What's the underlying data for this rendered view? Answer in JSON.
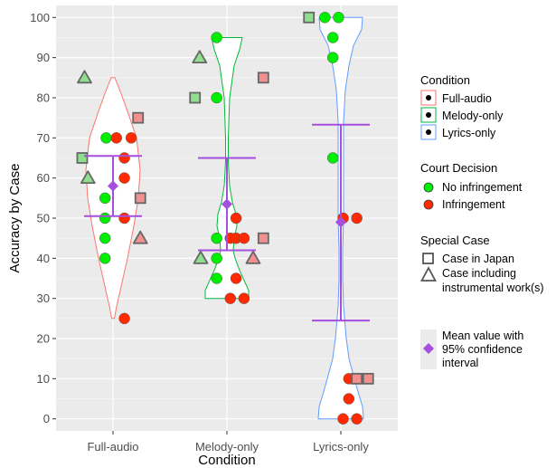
{
  "chart_data": {
    "type": "scatter",
    "title": "",
    "xlabel": "Condition",
    "ylabel": "Accuracy by Case",
    "ylim": [
      -3,
      103
    ],
    "yticks": [
      0,
      10,
      20,
      30,
      40,
      50,
      60,
      70,
      80,
      90,
      100
    ],
    "categories": [
      "Full-audio",
      "Melody-only",
      "Lyrics-only"
    ],
    "grid": true,
    "background": "#ebebeb",
    "legend_position": "right",
    "colors": {
      "no_infringement": "#00ee00",
      "infringement": "#ff2a00",
      "no_infringement_special": "#8fdf8f",
      "infringement_special": "#f29090",
      "mean": "#a64fdf",
      "violin_full": "#f8766d",
      "violin_melody": "#00ba38",
      "violin_lyrics": "#619cff"
    },
    "violins": [
      {
        "category": "Full-audio",
        "color": "#f8766d",
        "profile": [
          [
            25,
            1.5
          ],
          [
            28,
            4
          ],
          [
            33,
            9
          ],
          [
            40,
            16
          ],
          [
            48,
            23
          ],
          [
            55,
            28
          ],
          [
            62,
            30
          ],
          [
            70,
            26
          ],
          [
            76,
            17
          ],
          [
            81,
            9
          ],
          [
            85,
            2
          ]
        ]
      },
      {
        "category": "Melody-only",
        "color": "#00ba38",
        "profile": [
          [
            30,
            24
          ],
          [
            32,
            24
          ],
          [
            34,
            20
          ],
          [
            37,
            14
          ],
          [
            40,
            9
          ],
          [
            42,
            7
          ],
          [
            45,
            8
          ],
          [
            48,
            11
          ],
          [
            51,
            10
          ],
          [
            54,
            6
          ],
          [
            58,
            3
          ],
          [
            64,
            1.5
          ],
          [
            70,
            1.5
          ],
          [
            80,
            3
          ],
          [
            88,
            8
          ],
          [
            92,
            14
          ],
          [
            95,
            17
          ]
        ]
      },
      {
        "category": "Lyrics-only",
        "color": "#619cff",
        "profile": [
          [
            0,
            25
          ],
          [
            3,
            24
          ],
          [
            6,
            20
          ],
          [
            10,
            15
          ],
          [
            15,
            9
          ],
          [
            20,
            6
          ],
          [
            28,
            3
          ],
          [
            35,
            2
          ],
          [
            42,
            2
          ],
          [
            50,
            3
          ],
          [
            58,
            3
          ],
          [
            66,
            3
          ],
          [
            74,
            3
          ],
          [
            82,
            5
          ],
          [
            88,
            9
          ],
          [
            93,
            14
          ],
          [
            97,
            23
          ],
          [
            100,
            24
          ]
        ]
      }
    ],
    "points": [
      {
        "category": "Full-audio",
        "y": 85,
        "dx": -0.25,
        "decision": "no_infringement",
        "special": "instrumental"
      },
      {
        "category": "Full-audio",
        "y": 75,
        "dx": 0.22,
        "decision": "infringement",
        "special": "japan"
      },
      {
        "category": "Full-audio",
        "y": 70,
        "dx": -0.06,
        "decision": "no_infringement",
        "special": "none"
      },
      {
        "category": "Full-audio",
        "y": 70,
        "dx": 0.03,
        "decision": "infringement",
        "special": "none"
      },
      {
        "category": "Full-audio",
        "y": 70,
        "dx": 0.16,
        "decision": "infringement",
        "special": "none"
      },
      {
        "category": "Full-audio",
        "y": 65,
        "dx": -0.27,
        "decision": "no_infringement",
        "special": "japan"
      },
      {
        "category": "Full-audio",
        "y": 65,
        "dx": 0.1,
        "decision": "infringement",
        "special": "none"
      },
      {
        "category": "Full-audio",
        "y": 60,
        "dx": -0.22,
        "decision": "no_infringement",
        "special": "instrumental"
      },
      {
        "category": "Full-audio",
        "y": 60,
        "dx": 0.1,
        "decision": "infringement",
        "special": "none"
      },
      {
        "category": "Full-audio",
        "y": 55,
        "dx": -0.07,
        "decision": "no_infringement",
        "special": "none"
      },
      {
        "category": "Full-audio",
        "y": 55,
        "dx": 0.24,
        "decision": "infringement",
        "special": "japan"
      },
      {
        "category": "Full-audio",
        "y": 50,
        "dx": -0.07,
        "decision": "no_infringement",
        "special": "none"
      },
      {
        "category": "Full-audio",
        "y": 50,
        "dx": 0.1,
        "decision": "infringement",
        "special": "none"
      },
      {
        "category": "Full-audio",
        "y": 45,
        "dx": -0.07,
        "decision": "no_infringement",
        "special": "none"
      },
      {
        "category": "Full-audio",
        "y": 45,
        "dx": 0.24,
        "decision": "infringement",
        "special": "instrumental"
      },
      {
        "category": "Full-audio",
        "y": 40,
        "dx": -0.07,
        "decision": "no_infringement",
        "special": "none"
      },
      {
        "category": "Full-audio",
        "y": 25,
        "dx": 0.1,
        "decision": "infringement",
        "special": "none"
      },
      {
        "category": "Melody-only",
        "y": 95,
        "dx": -0.09,
        "decision": "no_infringement",
        "special": "none"
      },
      {
        "category": "Melody-only",
        "y": 90,
        "dx": -0.24,
        "decision": "no_infringement",
        "special": "instrumental"
      },
      {
        "category": "Melody-only",
        "y": 85,
        "dx": 0.32,
        "decision": "infringement",
        "special": "japan"
      },
      {
        "category": "Melody-only",
        "y": 80,
        "dx": -0.28,
        "decision": "no_infringement",
        "special": "japan"
      },
      {
        "category": "Melody-only",
        "y": 80,
        "dx": -0.09,
        "decision": "no_infringement",
        "special": "none"
      },
      {
        "category": "Melody-only",
        "y": 50,
        "dx": 0.08,
        "decision": "infringement",
        "special": "none"
      },
      {
        "category": "Melody-only",
        "y": 45,
        "dx": -0.09,
        "decision": "no_infringement",
        "special": "none"
      },
      {
        "category": "Melody-only",
        "y": 45,
        "dx": 0.03,
        "decision": "infringement",
        "special": "none"
      },
      {
        "category": "Melody-only",
        "y": 45,
        "dx": 0.08,
        "decision": "infringement",
        "special": "none"
      },
      {
        "category": "Melody-only",
        "y": 45,
        "dx": 0.15,
        "decision": "infringement",
        "special": "none"
      },
      {
        "category": "Melody-only",
        "y": 45,
        "dx": 0.32,
        "decision": "infringement",
        "special": "japan"
      },
      {
        "category": "Melody-only",
        "y": 40,
        "dx": -0.23,
        "decision": "no_infringement",
        "special": "instrumental"
      },
      {
        "category": "Melody-only",
        "y": 40,
        "dx": -0.09,
        "decision": "no_infringement",
        "special": "none"
      },
      {
        "category": "Melody-only",
        "y": 40,
        "dx": 0.23,
        "decision": "infringement",
        "special": "instrumental"
      },
      {
        "category": "Melody-only",
        "y": 35,
        "dx": -0.09,
        "decision": "no_infringement",
        "special": "none"
      },
      {
        "category": "Melody-only",
        "y": 35,
        "dx": 0.08,
        "decision": "infringement",
        "special": "none"
      },
      {
        "category": "Melody-only",
        "y": 30,
        "dx": 0.03,
        "decision": "infringement",
        "special": "none"
      },
      {
        "category": "Melody-only",
        "y": 30,
        "dx": 0.15,
        "decision": "infringement",
        "special": "none"
      },
      {
        "category": "Lyrics-only",
        "y": 100,
        "dx": -0.28,
        "decision": "no_infringement",
        "special": "japan"
      },
      {
        "category": "Lyrics-only",
        "y": 100,
        "dx": -0.14,
        "decision": "no_infringement",
        "special": "none"
      },
      {
        "category": "Lyrics-only",
        "y": 100,
        "dx": -0.02,
        "decision": "no_infringement",
        "special": "none"
      },
      {
        "category": "Lyrics-only",
        "y": 95,
        "dx": -0.07,
        "decision": "no_infringement",
        "special": "none"
      },
      {
        "category": "Lyrics-only",
        "y": 90,
        "dx": -0.07,
        "decision": "no_infringement",
        "special": "none"
      },
      {
        "category": "Lyrics-only",
        "y": 65,
        "dx": -0.07,
        "decision": "no_infringement",
        "special": "none"
      },
      {
        "category": "Lyrics-only",
        "y": 50,
        "dx": 0.02,
        "decision": "infringement",
        "special": "none"
      },
      {
        "category": "Lyrics-only",
        "y": 50,
        "dx": 0.14,
        "decision": "infringement",
        "special": "none"
      },
      {
        "category": "Lyrics-only",
        "y": 10,
        "dx": 0.07,
        "decision": "infringement",
        "special": "none"
      },
      {
        "category": "Lyrics-only",
        "y": 10,
        "dx": 0.14,
        "decision": "infringement",
        "special": "japan"
      },
      {
        "category": "Lyrics-only",
        "y": 10,
        "dx": 0.24,
        "decision": "infringement",
        "special": "japan"
      },
      {
        "category": "Lyrics-only",
        "y": 5,
        "dx": 0.07,
        "decision": "infringement",
        "special": "none"
      },
      {
        "category": "Lyrics-only",
        "y": 0,
        "dx": 0.02,
        "decision": "infringement",
        "special": "none"
      },
      {
        "category": "Lyrics-only",
        "y": 0,
        "dx": 0.14,
        "decision": "infringement",
        "special": "none"
      }
    ],
    "mean_ci": [
      {
        "category": "Full-audio",
        "mean": 58,
        "lower": 50.5,
        "upper": 65.5,
        "dx": 0.0
      },
      {
        "category": "Melody-only",
        "mean": 53.5,
        "lower": 42,
        "upper": 65,
        "dx": 0.0
      },
      {
        "category": "Lyrics-only",
        "mean": 49,
        "lower": 24.5,
        "upper": 73.3,
        "dx": 0.0
      }
    ],
    "legend": {
      "condition": {
        "title": "Condition",
        "items": [
          "Full-audio",
          "Melody-only",
          "Lyrics-only"
        ]
      },
      "court_decision": {
        "title": "Court Decision",
        "items": [
          "No infringement",
          "Infringement"
        ]
      },
      "special_case": {
        "title": "Special Case",
        "items": [
          "Case in Japan",
          "Case including",
          "instrumental work(s)"
        ]
      },
      "mean": {
        "lines": [
          "Mean value with",
          "95% confidence",
          "interval"
        ]
      }
    }
  }
}
